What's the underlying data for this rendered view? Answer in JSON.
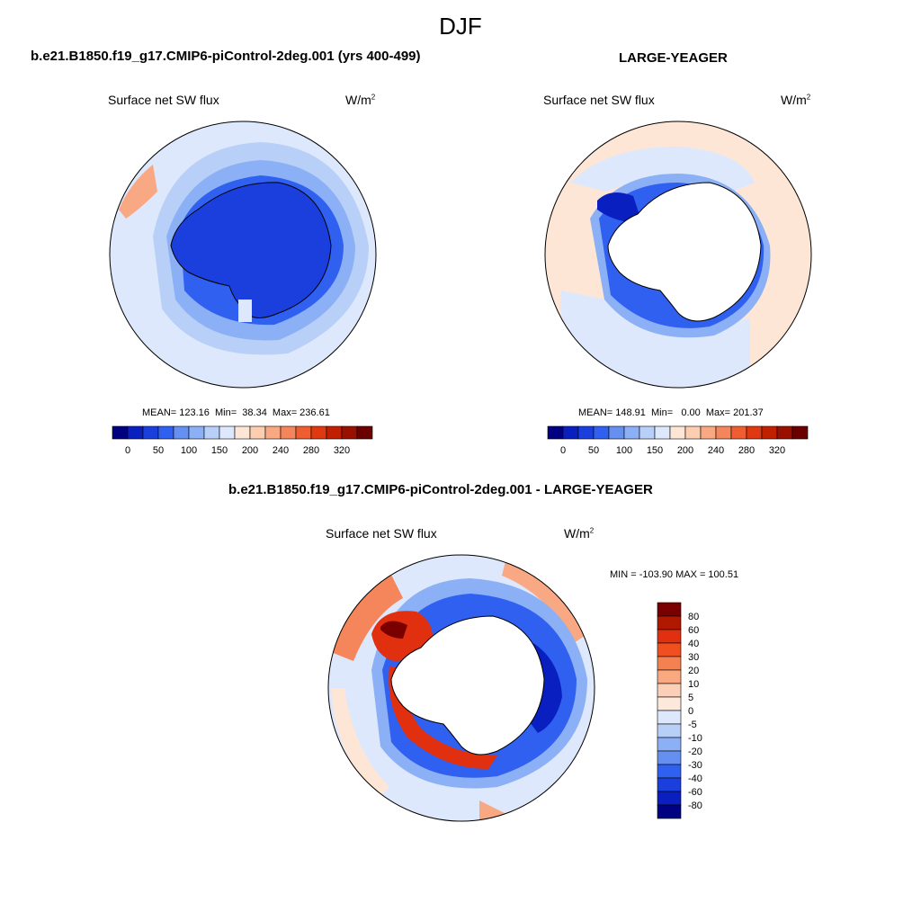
{
  "figure": {
    "title": "DJF",
    "case1_title": "b.e21.B1850.f19_g17.CMIP6-piControl-2deg.001 (yrs 400-499)",
    "case2_title": "LARGE-YEAGER",
    "diff_title": "b.e21.B1850.f19_g17.CMIP6-piControl-2deg.001 - LARGE-YEAGER"
  },
  "chart_data": [
    {
      "type": "heatmap",
      "projection": "south-polar-stereographic",
      "variable": "Surface net SW flux",
      "units_base": "W/m",
      "units_exp": "2",
      "stats": {
        "mean": "123.16",
        "min": "38.34",
        "max": "236.61"
      },
      "stats_text": "MEAN= 123.16  Min=  38.34  Max= 236.61",
      "colorbar": {
        "orientation": "horizontal",
        "levels": [
          "0",
          "50",
          "100",
          "150",
          "200",
          "240",
          "280",
          "320"
        ],
        "colors": [
          "#000080",
          "#0a1fc0",
          "#1a3fdc",
          "#3060f0",
          "#6690f0",
          "#8cb0f5",
          "#b8d0f8",
          "#dde8fc",
          "#fde6d6",
          "#fccdb0",
          "#f8a882",
          "#f5855a",
          "#ef5e30",
          "#e03810",
          "#c02000",
          "#9a1000",
          "#6a0000"
        ]
      }
    },
    {
      "type": "heatmap",
      "projection": "south-polar-stereographic",
      "variable": "Surface net SW flux",
      "units_base": "W/m",
      "units_exp": "2",
      "stats": {
        "mean": "148.91",
        "min": "0.00",
        "max": "201.37"
      },
      "stats_text": "MEAN= 148.91  Min=   0.00  Max= 201.37",
      "colorbar": {
        "orientation": "horizontal",
        "levels": [
          "0",
          "50",
          "100",
          "150",
          "200",
          "240",
          "280",
          "320"
        ],
        "colors": [
          "#000080",
          "#0a1fc0",
          "#1a3fdc",
          "#3060f0",
          "#6690f0",
          "#8cb0f5",
          "#b8d0f8",
          "#dde8fc",
          "#fde6d6",
          "#fccdb0",
          "#f8a882",
          "#f5855a",
          "#ef5e30",
          "#e03810",
          "#c02000",
          "#9a1000",
          "#6a0000"
        ]
      }
    },
    {
      "type": "heatmap",
      "projection": "south-polar-stereographic",
      "variable": "Surface net SW flux",
      "units_base": "W/m",
      "units_exp": "2",
      "stats": {
        "min": "-103.90",
        "max": "100.51"
      },
      "stats_text": "MIN = -103.90 MAX = 100.51",
      "colorbar": {
        "orientation": "vertical",
        "levels": [
          "80",
          "60",
          "40",
          "30",
          "20",
          "10",
          "5",
          "0",
          "-5",
          "-10",
          "-20",
          "-30",
          "-40",
          "-60",
          "-80"
        ],
        "colors": [
          "#7a0000",
          "#b01800",
          "#e03010",
          "#f05020",
          "#f58050",
          "#f9a880",
          "#fcd0b8",
          "#fde9dc",
          "#dde8fc",
          "#b8d0f8",
          "#8cb0f5",
          "#6690f0",
          "#3060f0",
          "#1a3fdc",
          "#0a1fc0",
          "#000080"
        ]
      }
    }
  ]
}
